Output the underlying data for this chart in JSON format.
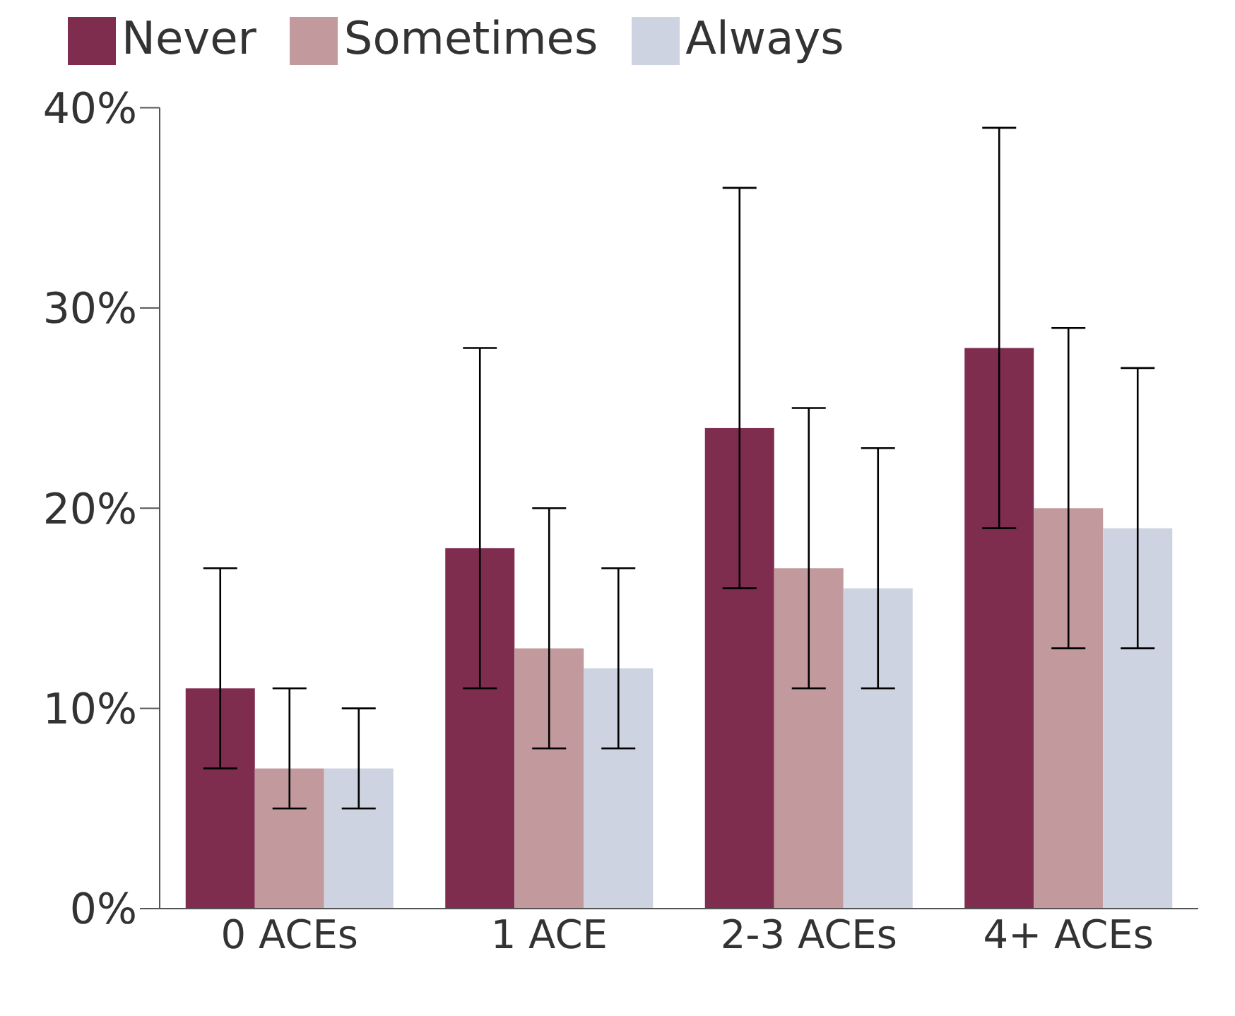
{
  "chart_data": {
    "type": "bar",
    "categories": [
      "0 ACEs",
      "1 ACE",
      "2-3 ACEs",
      "4+ ACEs"
    ],
    "series": [
      {
        "name": "Never",
        "color": "#7f2d4f",
        "values": [
          11,
          18,
          24,
          28
        ],
        "errors": [
          [
            7,
            17
          ],
          [
            11,
            28
          ],
          [
            16,
            36
          ],
          [
            19,
            39
          ]
        ]
      },
      {
        "name": "Sometimes",
        "color": "#c29a9e",
        "values": [
          7,
          13,
          17,
          20
        ],
        "errors": [
          [
            5,
            11
          ],
          [
            8,
            20
          ],
          [
            11,
            25
          ],
          [
            13,
            29
          ]
        ]
      },
      {
        "name": "Always",
        "color": "#cdd3e0",
        "values": [
          7,
          12,
          16,
          19
        ],
        "errors": [
          [
            5,
            10
          ],
          [
            8,
            17
          ],
          [
            11,
            23
          ],
          [
            13,
            27
          ]
        ]
      }
    ],
    "ylim": [
      0,
      40
    ],
    "yticks": [
      {
        "value": 0,
        "label": "0%"
      },
      {
        "value": 10,
        "label": "10%"
      },
      {
        "value": 20,
        "label": "20%"
      },
      {
        "value": 30,
        "label": "30%"
      },
      {
        "value": 40,
        "label": "40%"
      }
    ],
    "grid": false,
    "legend": "top left"
  }
}
